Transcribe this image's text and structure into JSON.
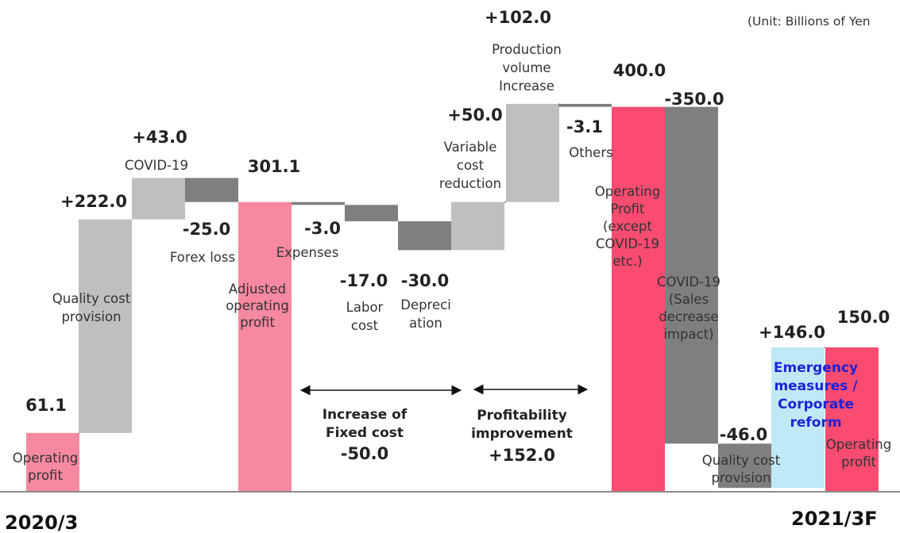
{
  "chart_data": {
    "type": "bar",
    "subtype": "waterfall",
    "unit": "(Unit: Billions of Yen",
    "period_start": "2020/3",
    "period_end": "2021/3F",
    "colors": {
      "total_light": "#f6899f",
      "total_strong": "#fa4b70",
      "increase": "#bfbfbf",
      "decrease": "#7f7f7f",
      "emergency": "#bfe9f7",
      "emergency_text": "#1e22d8",
      "axis": "#8c8c8c"
    },
    "steps": [
      {
        "id": "op2020",
        "value": 61.1,
        "value_label": "61.1",
        "label": [
          "Operating",
          "profit"
        ],
        "kind": "total",
        "color": "total_light"
      },
      {
        "id": "quality",
        "value": 222.0,
        "value_label": "+222.0",
        "label": [
          "Quality cost",
          "provision"
        ],
        "kind": "delta",
        "color": "increase"
      },
      {
        "id": "covid",
        "value": 43.0,
        "value_label": "+43.0",
        "label": [
          "COVID-19"
        ],
        "kind": "delta",
        "color": "increase"
      },
      {
        "id": "forex",
        "value": -25.0,
        "value_label": "-25.0",
        "label": [
          "Forex loss"
        ],
        "kind": "delta",
        "color": "decrease"
      },
      {
        "id": "adjusted",
        "value": 301.1,
        "value_label": "301.1",
        "label": [
          "Adjusted",
          "operating",
          "profit"
        ],
        "kind": "total",
        "color": "total_light"
      },
      {
        "id": "expenses",
        "value": -3.0,
        "value_label": "-3.0",
        "label": [
          "Expenses"
        ],
        "kind": "delta",
        "color": "decrease"
      },
      {
        "id": "labor",
        "value": -17.0,
        "value_label": "-17.0",
        "label": [
          "Labor",
          "cost"
        ],
        "kind": "delta",
        "color": "decrease"
      },
      {
        "id": "depreciation",
        "value": -30.0,
        "value_label": "-30.0",
        "label": [
          "Depreci",
          "ation"
        ],
        "kind": "delta",
        "color": "decrease"
      },
      {
        "id": "variable",
        "value": 50.0,
        "value_label": "+50.0",
        "label": [
          "Variable",
          "cost",
          "reduction"
        ],
        "kind": "delta",
        "color": "increase"
      },
      {
        "id": "production",
        "value": 102.0,
        "value_label": "+102.0",
        "label": [
          "Production",
          "volume",
          "Increase"
        ],
        "kind": "delta",
        "color": "increase"
      },
      {
        "id": "others",
        "value": -3.1,
        "value_label": "-3.1",
        "label": [
          "Others"
        ],
        "kind": "delta",
        "color": "decrease"
      },
      {
        "id": "op_except",
        "value": 400.0,
        "value_label": "400.0",
        "label": [
          "Operating",
          "Profit",
          "(except",
          "COVID-19",
          "etc.)"
        ],
        "kind": "total",
        "color": "total_strong"
      },
      {
        "id": "covid_sales",
        "value": -350.0,
        "value_label": "-350.0",
        "label": [
          "COVID-19",
          "(Sales",
          "decrease",
          "impact)"
        ],
        "kind": "delta",
        "color": "decrease"
      },
      {
        "id": "quality2",
        "value": -46.0,
        "value_label": "-46.0",
        "label": [
          "Quality cost",
          "provision"
        ],
        "kind": "delta",
        "color": "decrease"
      },
      {
        "id": "emergency",
        "value": 146.0,
        "value_label": "+146.0",
        "label": [
          "Emergency",
          "measures /",
          "Corporate",
          "reform"
        ],
        "kind": "delta",
        "color": "emergency"
      },
      {
        "id": "op2021",
        "value": 150.0,
        "value_label": "150.0",
        "label": [
          "Operating",
          "profit"
        ],
        "kind": "total",
        "color": "total_strong"
      }
    ],
    "groups": [
      {
        "label": [
          "Increase of",
          "Fixed cost"
        ],
        "value_label": "-50.0"
      },
      {
        "label": [
          "Profitability",
          "improvement"
        ],
        "value_label": "+152.0"
      }
    ],
    "ylim": [
      0,
      410
    ]
  }
}
